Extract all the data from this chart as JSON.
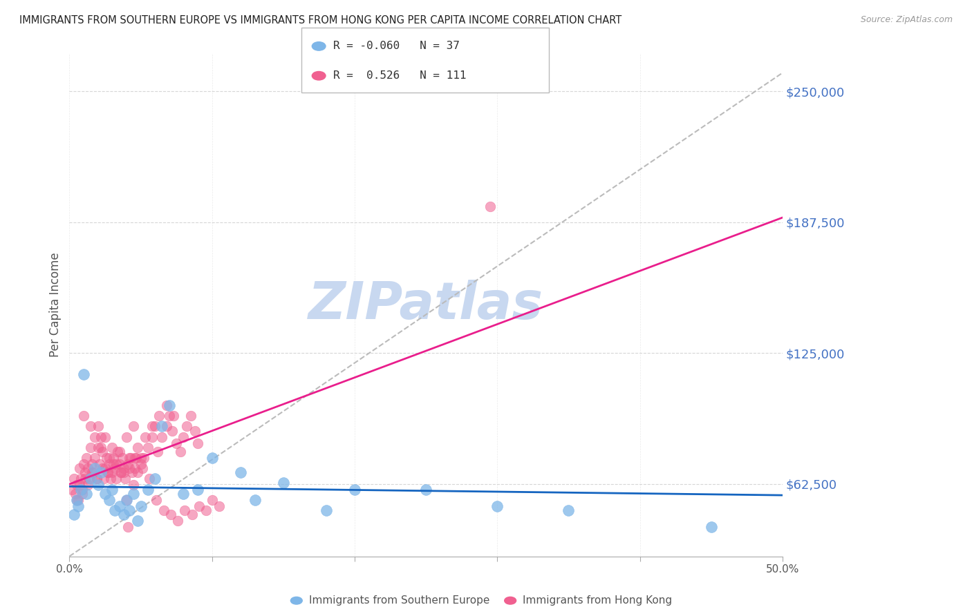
{
  "title": "IMMIGRANTS FROM SOUTHERN EUROPE VS IMMIGRANTS FROM HONG KONG PER CAPITA INCOME CORRELATION CHART",
  "source": "Source: ZipAtlas.com",
  "ylabel": "Per Capita Income",
  "xlim": [
    0.0,
    0.5
  ],
  "ylim": [
    28000,
    268000
  ],
  "yticks": [
    62500,
    125000,
    187500,
    250000
  ],
  "ytick_labels": [
    "$62,500",
    "$125,000",
    "$187,500",
    "$250,000"
  ],
  "xticks": [
    0.0,
    0.1,
    0.2,
    0.3,
    0.4,
    0.5
  ],
  "xtick_labels": [
    "0.0%",
    "",
    "",
    "",
    "",
    "50.0%"
  ],
  "blue_R": -0.06,
  "blue_N": 37,
  "pink_R": 0.526,
  "pink_N": 111,
  "blue_color": "#7EB6E8",
  "pink_color": "#F06090",
  "blue_label": "Immigrants from Southern Europe",
  "pink_label": "Immigrants from Hong Kong",
  "background_color": "#ffffff",
  "watermark_text": "ZIPatlas",
  "watermark_color": "#C8D8F0",
  "blue_scatter_x": [
    0.005,
    0.003,
    0.008,
    0.006,
    0.015,
    0.012,
    0.018,
    0.02,
    0.022,
    0.025,
    0.028,
    0.03,
    0.032,
    0.035,
    0.038,
    0.04,
    0.042,
    0.045,
    0.048,
    0.05,
    0.055,
    0.06,
    0.065,
    0.07,
    0.08,
    0.09,
    0.1,
    0.12,
    0.13,
    0.15,
    0.18,
    0.2,
    0.25,
    0.3,
    0.35,
    0.45,
    0.01
  ],
  "blue_scatter_y": [
    55000,
    48000,
    60000,
    52000,
    65000,
    58000,
    70000,
    62000,
    68000,
    58000,
    55000,
    60000,
    50000,
    52000,
    48000,
    55000,
    50000,
    58000,
    45000,
    52000,
    60000,
    65000,
    90000,
    100000,
    58000,
    60000,
    75000,
    68000,
    55000,
    63000,
    50000,
    60000,
    60000,
    52000,
    50000,
    42000,
    115000
  ],
  "pink_scatter_x": [
    0.002,
    0.003,
    0.004,
    0.005,
    0.006,
    0.007,
    0.008,
    0.009,
    0.01,
    0.011,
    0.012,
    0.013,
    0.014,
    0.015,
    0.016,
    0.017,
    0.018,
    0.019,
    0.02,
    0.021,
    0.022,
    0.023,
    0.024,
    0.025,
    0.026,
    0.027,
    0.028,
    0.029,
    0.03,
    0.031,
    0.032,
    0.033,
    0.034,
    0.035,
    0.036,
    0.037,
    0.038,
    0.039,
    0.04,
    0.041,
    0.042,
    0.043,
    0.044,
    0.045,
    0.046,
    0.047,
    0.048,
    0.05,
    0.052,
    0.055,
    0.058,
    0.06,
    0.062,
    0.065,
    0.068,
    0.07,
    0.072,
    0.075,
    0.078,
    0.08,
    0.082,
    0.085,
    0.088,
    0.09,
    0.01,
    0.02,
    0.025,
    0.03,
    0.035,
    0.04,
    0.045,
    0.05,
    0.015,
    0.018,
    0.022,
    0.028,
    0.033,
    0.038,
    0.042,
    0.048,
    0.053,
    0.058,
    0.063,
    0.068,
    0.073,
    0.005,
    0.007,
    0.009,
    0.011,
    0.013,
    0.016,
    0.019,
    0.023,
    0.027,
    0.031,
    0.036,
    0.041,
    0.046,
    0.051,
    0.056,
    0.061,
    0.066,
    0.071,
    0.076,
    0.081,
    0.086,
    0.091,
    0.096,
    0.1,
    0.105,
    0.295
  ],
  "pink_scatter_y": [
    60000,
    65000,
    58000,
    62000,
    55000,
    70000,
    65000,
    58000,
    72000,
    68000,
    75000,
    70000,
    65000,
    80000,
    72000,
    68000,
    75000,
    65000,
    80000,
    72000,
    85000,
    78000,
    65000,
    70000,
    75000,
    68000,
    72000,
    65000,
    68000,
    75000,
    70000,
    65000,
    78000,
    72000,
    68000,
    75000,
    70000,
    65000,
    55000,
    42000,
    70000,
    75000,
    68000,
    62000,
    70000,
    75000,
    68000,
    72000,
    75000,
    80000,
    85000,
    90000,
    78000,
    85000,
    90000,
    95000,
    88000,
    82000,
    78000,
    85000,
    90000,
    95000,
    88000,
    82000,
    95000,
    90000,
    85000,
    80000,
    78000,
    85000,
    90000,
    75000,
    90000,
    85000,
    80000,
    75000,
    72000,
    68000,
    75000,
    80000,
    85000,
    90000,
    95000,
    100000,
    95000,
    55000,
    62000,
    60000,
    65000,
    62000,
    68000,
    65000,
    70000,
    68000,
    72000,
    68000,
    72000,
    75000,
    70000,
    65000,
    55000,
    50000,
    48000,
    45000,
    50000,
    48000,
    52000,
    50000,
    55000,
    52000,
    195000
  ]
}
